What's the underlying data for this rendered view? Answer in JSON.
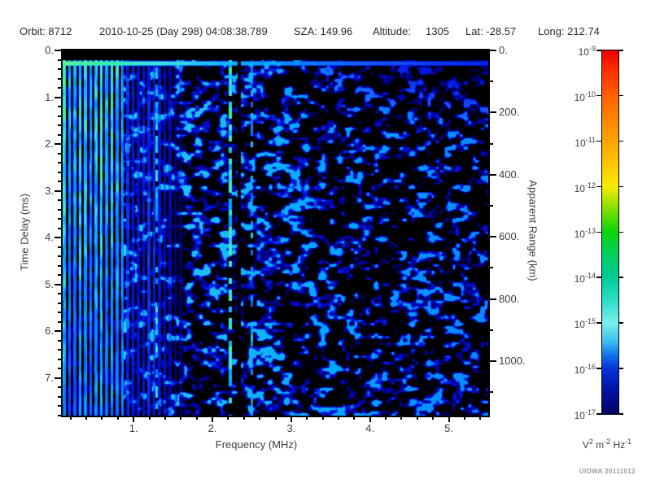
{
  "header": {
    "items": [
      "Orbit: 8712",
      "2010-10-25 (Day 298) 04:08:38.789",
      "SZA: 149.96",
      "Altitude:",
      "1305",
      "Lat: -28.57",
      "Long: 212.74"
    ]
  },
  "watermark": "UIOWA 20111012",
  "chart_data": {
    "type": "heatmap",
    "subtype": "radar-sounder-ionogram-spectrogram",
    "xlabel": "Frequency (MHz)",
    "ylabel": "Time Delay (ms)",
    "y2label": "Apparent Range (km)",
    "x_axis": {
      "min": 0.1,
      "max": 5.5,
      "major_ticks": [
        1,
        2,
        3,
        4,
        5
      ],
      "major_tick_labels": [
        "1.",
        "2.",
        "3.",
        "4.",
        "5."
      ],
      "minor_step": 0.2
    },
    "y_axis": {
      "min": 0,
      "max": 7.8,
      "direction": "down",
      "major_ticks": [
        0,
        1,
        2,
        3,
        4,
        5,
        6,
        7
      ],
      "major_tick_labels": [
        "0.",
        "1.",
        "2.",
        "3.",
        "4.",
        "5.",
        "6.",
        "7."
      ],
      "minor_step": 0.2
    },
    "y2_axis": {
      "min": 0,
      "max": 1175,
      "direction": "down",
      "major_ticks": [
        0,
        200,
        400,
        600,
        800,
        1000
      ],
      "major_tick_labels": [
        "0.",
        "200.",
        "400.",
        "600.",
        "800.",
        "1000."
      ],
      "minor_step": 100
    },
    "colorbar": {
      "scale": "log",
      "max_exponent": -9,
      "min_exponent": -17,
      "tick_exponents": [
        -9,
        -10,
        -11,
        -12,
        -13,
        -14,
        -15,
        -16,
        -17
      ],
      "units_parts": [
        {
          "base": "V",
          "exp": "2"
        },
        {
          "base": "m",
          "exp": "-2"
        },
        {
          "base": "Hz",
          "exp": "-1"
        }
      ],
      "gradient_stops": [
        [
          0.0,
          "#e80000"
        ],
        [
          0.05,
          "#ff2a00"
        ],
        [
          0.125,
          "#ff6000"
        ],
        [
          0.25,
          "#ffa500"
        ],
        [
          0.33,
          "#ffd000"
        ],
        [
          0.375,
          "#f8ec00"
        ],
        [
          0.43,
          "#8ce000"
        ],
        [
          0.5,
          "#0ad50a"
        ],
        [
          0.56,
          "#00d060"
        ],
        [
          0.625,
          "#00cc96"
        ],
        [
          0.69,
          "#2edfc9"
        ],
        [
          0.75,
          "#7ceeea"
        ],
        [
          0.8,
          "#3cc0f0"
        ],
        [
          0.84,
          "#1070e8"
        ],
        [
          0.875,
          "#0432d8"
        ],
        [
          0.94,
          "#0210a0"
        ],
        [
          1.0,
          "#010460"
        ]
      ]
    },
    "features": [
      {
        "name": "transmit-blanking-band",
        "type": "horizontal-band",
        "time_delay_ms": [
          0.0,
          0.21
        ],
        "appearance": "solid black band across full frequency range"
      },
      {
        "name": "first-echo-line",
        "type": "horizontal-line",
        "time_delay_ms": [
          0.22,
          0.32
        ],
        "freq_range_mhz": [
          0.1,
          5.5
        ],
        "appearance": "bright green at low frequency fading to blue at high frequency"
      },
      {
        "name": "plasma-harmonic-stripes",
        "type": "vertical-stripes",
        "freq_range_mhz": [
          0.1,
          0.85
        ],
        "appearance": "bright green-cyan vertical stripes, full time-delay extent, black gaps between"
      },
      {
        "name": "weak-striping",
        "type": "vertical-stripes",
        "freq_range_mhz": [
          0.85,
          1.62
        ],
        "appearance": "dimmer blue vertical striping with black gaps"
      },
      {
        "name": "bright-dotted-line-1",
        "type": "vertical-line",
        "freq_mhz": 1.29,
        "appearance": "dotted cyan line, full height"
      },
      {
        "name": "bright-dotted-line-2",
        "type": "vertical-line",
        "freq_mhz": 2.22,
        "appearance": "dotted bright cyan line, full height"
      },
      {
        "name": "data-gap",
        "type": "vertical-line",
        "freq_mhz": 2.33,
        "appearance": "black gap column, full height"
      },
      {
        "name": "bright-dotted-line-3",
        "type": "vertical-line",
        "freq_mhz": 2.5,
        "appearance": "faint dotted cyan line, full height"
      },
      {
        "name": "background-speckle",
        "type": "texture",
        "appearance": "mottled dark-blue blobs on black, density and brightness decreasing toward higher frequencies, large dark patch near top right"
      }
    ]
  }
}
